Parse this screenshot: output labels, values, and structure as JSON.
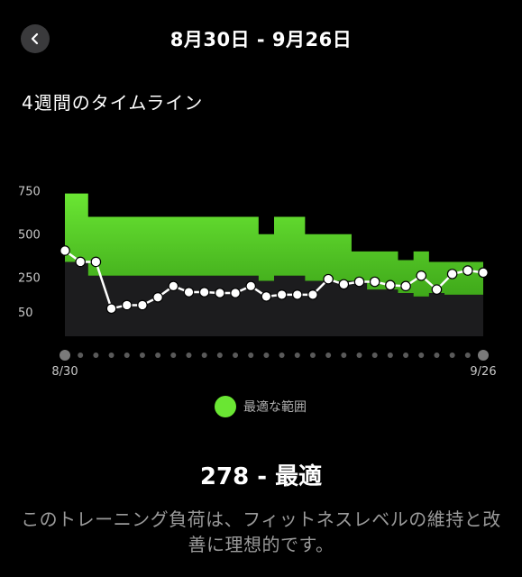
{
  "header": {
    "back_icon": "chevron-left-icon",
    "title": "8月30日 - 9月26日"
  },
  "section": {
    "title": "4週間のタイムライン"
  },
  "chart_data": {
    "type": "line",
    "y_ticks": [
      "750",
      "500",
      "250",
      "50"
    ],
    "y_tick_values": [
      750,
      500,
      250,
      50
    ],
    "x_labels": {
      "start": "8/30",
      "end": "9/26"
    },
    "x_count": 28,
    "series": [
      {
        "values": [
          405,
          340,
          340,
          70,
          90,
          90,
          135,
          200,
          165,
          165,
          160,
          160,
          200,
          140,
          150,
          150,
          150,
          240,
          210,
          225,
          225,
          205,
          200,
          260,
          180,
          270,
          290,
          278
        ]
      }
    ],
    "optimal_range": {
      "lower": [
        340,
        340,
        260,
        260,
        260,
        260,
        260,
        260,
        260,
        260,
        260,
        260,
        260,
        230,
        260,
        260,
        230,
        230,
        230,
        230,
        180,
        180,
        160,
        140,
        160,
        150,
        150,
        150
      ],
      "upper": [
        735,
        735,
        600,
        600,
        600,
        600,
        600,
        600,
        600,
        600,
        600,
        600,
        600,
        500,
        600,
        600,
        500,
        500,
        500,
        400,
        400,
        400,
        350,
        400,
        340,
        340,
        340,
        340
      ]
    },
    "colors": {
      "range": "#6ae633",
      "range_bottom": "#3fa81a",
      "below_range": "#1c1c1e",
      "line": "#ffffff",
      "dot_inactive": "#5a5a5a"
    }
  },
  "legend": {
    "label": "最適な範囲",
    "color": "#6ae633"
  },
  "summary": {
    "value": "278 - 最適",
    "description": "このトレーニング負荷は、フィットネスレベルの維持と改善に理想的です。"
  }
}
